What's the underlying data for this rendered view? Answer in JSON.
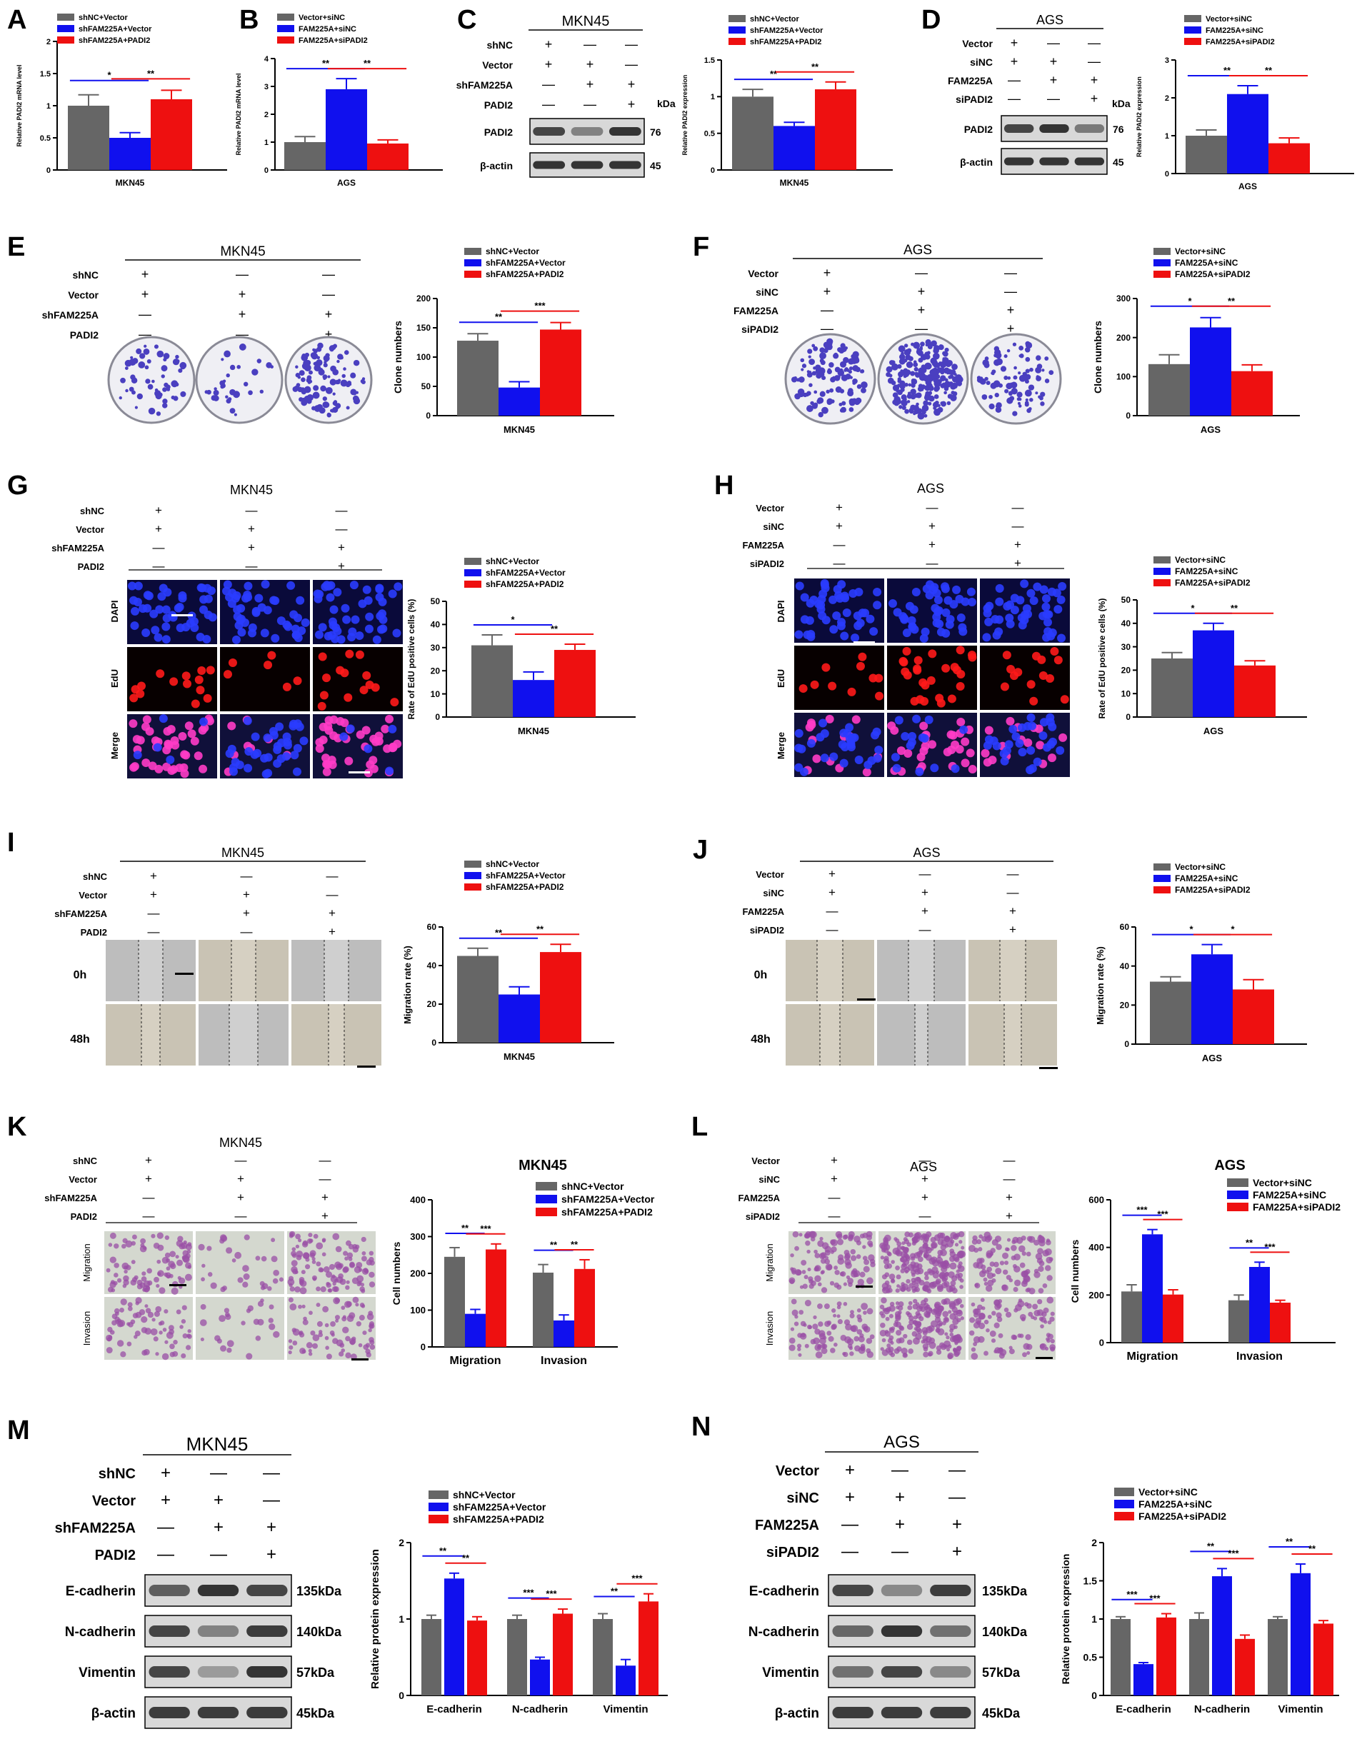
{
  "colors": {
    "gray": "#666666",
    "blue": "#1010ee",
    "red": "#ee1010",
    "blot_bg": "#d8d8d8",
    "band": "#2b2b2b"
  },
  "plus": "+",
  "minus": "—",
  "panels": {
    "A": {
      "letter": "A",
      "cell": "MKN45",
      "legend": [
        "shNC+Vector",
        "shFAM225A+Vector",
        "shFAM225A+PADI2"
      ]
    },
    "B": {
      "letter": "B",
      "cell": "AGS",
      "legend": [
        "Vector+siNC",
        "FAM225A+siNC",
        "FAM225A+siPADI2"
      ]
    },
    "C": {
      "letter": "C",
      "cell": "MKN45",
      "rows": [
        "shNC",
        "Vector",
        "shFAM225A",
        "PADI2"
      ],
      "kda": "kDa",
      "blots": [
        {
          "label": "PADI2",
          "size": "76"
        },
        {
          "label": "β-actin",
          "size": "45"
        }
      ]
    },
    "D": {
      "letter": "D",
      "cell": "AGS",
      "rows": [
        "Vector",
        "siNC",
        "FAM225A",
        "siPADI2"
      ],
      "kda": "kDa",
      "blots": [
        {
          "label": "PADI2",
          "size": "76"
        },
        {
          "label": "β-actin",
          "size": "45"
        }
      ]
    },
    "E": {
      "letter": "E",
      "cell": "MKN45",
      "rows": [
        "shNC",
        "Vector",
        "shFAM225A",
        "PADI2"
      ]
    },
    "F": {
      "letter": "F",
      "cell": "AGS",
      "rows": [
        "Vector",
        "siNC",
        "FAM225A",
        "siPADI2"
      ]
    },
    "G": {
      "letter": "G",
      "cell": "MKN45",
      "rows": [
        "shNC",
        "Vector",
        "shFAM225A",
        "PADI2"
      ],
      "img_rows": [
        "DAPI",
        "EdU",
        "Merge"
      ]
    },
    "H": {
      "letter": "H",
      "cell": "AGS",
      "rows": [
        "Vector",
        "siNC",
        "FAM225A",
        "siPADI2"
      ],
      "img_rows": [
        "DAPI",
        "EdU",
        "Merge"
      ]
    },
    "I": {
      "letter": "I",
      "cell": "MKN45",
      "rows": [
        "shNC",
        "Vector",
        "shFAM225A",
        "PADI2"
      ],
      "img_rows": [
        "0h",
        "48h"
      ]
    },
    "J": {
      "letter": "J",
      "cell": "AGS",
      "rows": [
        "Vector",
        "siNC",
        "FAM225A",
        "siPADI2"
      ],
      "img_rows": [
        "0h",
        "48h"
      ]
    },
    "K": {
      "letter": "K",
      "cell": "MKN45",
      "rows": [
        "shNC",
        "Vector",
        "shFAM225A",
        "PADI2"
      ],
      "img_rows": [
        "Migration",
        "Invasion"
      ]
    },
    "L": {
      "letter": "L",
      "cell": "AGS",
      "rows": [
        "Vector",
        "siNC",
        "FAM225A",
        "siPADI2"
      ],
      "img_rows": [
        "Migration",
        "Invasion"
      ]
    },
    "M": {
      "letter": "M",
      "cell": "MKN45",
      "rows": [
        "shNC",
        "Vector",
        "shFAM225A",
        "PADI2"
      ],
      "blots": [
        {
          "label": "E-cadherin",
          "size": "135kDa"
        },
        {
          "label": "N-cadherin",
          "size": "140kDa"
        },
        {
          "label": "Vimentin",
          "size": "57kDa"
        },
        {
          "label": "β-actin",
          "size": "45kDa"
        }
      ]
    },
    "N": {
      "letter": "N",
      "cell": "AGS",
      "rows": [
        "Vector",
        "siNC",
        "FAM225A",
        "siPADI2"
      ],
      "blots": [
        {
          "label": "E-cadherin",
          "size": "135kDa"
        },
        {
          "label": "N-cadherin",
          "size": "140kDa"
        },
        {
          "label": "Vimentin",
          "size": "57kDa"
        },
        {
          "label": "β-actin",
          "size": "45kDa"
        }
      ]
    }
  },
  "chart_data": [
    {
      "id": "A",
      "type": "bar",
      "categories": [
        "MKN45"
      ],
      "series": [
        {
          "name": "shNC+Vector",
          "values": [
            1.0
          ],
          "err": [
            0.17
          ]
        },
        {
          "name": "shFAM225A+Vector",
          "values": [
            0.5
          ],
          "err": [
            0.08
          ]
        },
        {
          "name": "shFAM225A+PADI2",
          "values": [
            1.1
          ],
          "err": [
            0.14
          ]
        }
      ],
      "ylabel": "Relative PADI2 mRNA level",
      "ylim": [
        0,
        2.0
      ],
      "yticks": [
        0.0,
        0.5,
        1.0,
        1.5,
        2.0
      ],
      "sig": [
        {
          "from": 0,
          "to": 1,
          "text": "*"
        },
        {
          "from": 1,
          "to": 2,
          "text": "**"
        }
      ]
    },
    {
      "id": "B",
      "type": "bar",
      "categories": [
        "AGS"
      ],
      "series": [
        {
          "name": "Vector+siNC",
          "values": [
            1.0
          ],
          "err": [
            0.2
          ]
        },
        {
          "name": "FAM225A+siNC",
          "values": [
            2.9
          ],
          "err": [
            0.38
          ]
        },
        {
          "name": "FAM225A+siPADI2",
          "values": [
            0.95
          ],
          "err": [
            0.13
          ]
        }
      ],
      "ylabel": "Relative PADI2 mRNA level",
      "ylim": [
        0,
        4
      ],
      "yticks": [
        0,
        1,
        2,
        3,
        4
      ],
      "sig": [
        {
          "from": 0,
          "to": 1,
          "text": "**"
        },
        {
          "from": 1,
          "to": 2,
          "text": "**"
        }
      ]
    },
    {
      "id": "C",
      "type": "bar",
      "categories": [
        "MKN45"
      ],
      "series": [
        {
          "name": "shNC+Vector",
          "values": [
            1.0
          ],
          "err": [
            0.1
          ]
        },
        {
          "name": "shFAM225A+Vector",
          "values": [
            0.6
          ],
          "err": [
            0.05
          ]
        },
        {
          "name": "shFAM225A+PADI2",
          "values": [
            1.1
          ],
          "err": [
            0.1
          ]
        }
      ],
      "ylabel": "Relative PADI2 expression",
      "ylim": [
        0,
        1.5
      ],
      "yticks": [
        0.0,
        0.5,
        1.0,
        1.5
      ],
      "sig": [
        {
          "from": 0,
          "to": 1,
          "text": "**"
        },
        {
          "from": 1,
          "to": 2,
          "text": "**"
        }
      ]
    },
    {
      "id": "D",
      "type": "bar",
      "categories": [
        "AGS"
      ],
      "series": [
        {
          "name": "Vector+siNC",
          "values": [
            1.0
          ],
          "err": [
            0.15
          ]
        },
        {
          "name": "FAM225A+siNC",
          "values": [
            2.1
          ],
          "err": [
            0.22
          ]
        },
        {
          "name": "FAM225A+siPADI2",
          "values": [
            0.8
          ],
          "err": [
            0.14
          ]
        }
      ],
      "ylabel": "Relative PADI2 expression",
      "ylim": [
        0,
        3
      ],
      "yticks": [
        0,
        1,
        2,
        3
      ],
      "sig": [
        {
          "from": 0,
          "to": 1,
          "text": "**"
        },
        {
          "from": 1,
          "to": 2,
          "text": "**"
        }
      ]
    },
    {
      "id": "E",
      "type": "bar",
      "categories": [
        "MKN45"
      ],
      "series": [
        {
          "name": "shNC+Vector",
          "values": [
            128
          ],
          "err": [
            12
          ]
        },
        {
          "name": "shFAM225A+Vector",
          "values": [
            48
          ],
          "err": [
            10
          ]
        },
        {
          "name": "shFAM225A+PADI2",
          "values": [
            147
          ],
          "err": [
            12
          ]
        }
      ],
      "ylabel": "Clone numbers",
      "ylim": [
        0,
        200
      ],
      "yticks": [
        0,
        50,
        100,
        150,
        200
      ],
      "sig": [
        {
          "from": 0,
          "to": 1,
          "text": "**"
        },
        {
          "from": 1,
          "to": 2,
          "text": "***"
        }
      ]
    },
    {
      "id": "F",
      "type": "bar",
      "categories": [
        "AGS"
      ],
      "series": [
        {
          "name": "Vector+siNC",
          "values": [
            132
          ],
          "err": [
            24
          ]
        },
        {
          "name": "FAM225A+siNC",
          "values": [
            226
          ],
          "err": [
            25
          ]
        },
        {
          "name": "FAM225A+siPADI2",
          "values": [
            114
          ],
          "err": [
            16
          ]
        }
      ],
      "ylabel": "Clone numbers",
      "ylim": [
        0,
        300
      ],
      "yticks": [
        0,
        100,
        200,
        300
      ],
      "sig": [
        {
          "from": 0,
          "to": 1,
          "text": "*"
        },
        {
          "from": 1,
          "to": 2,
          "text": "**"
        }
      ]
    },
    {
      "id": "G",
      "type": "bar",
      "categories": [
        "MKN45"
      ],
      "series": [
        {
          "name": "shNC+Vector",
          "values": [
            31
          ],
          "err": [
            4.5
          ]
        },
        {
          "name": "shFAM225A+Vector",
          "values": [
            16
          ],
          "err": [
            3.5
          ]
        },
        {
          "name": "shFAM225A+PADI2",
          "values": [
            29
          ],
          "err": [
            2.5
          ]
        }
      ],
      "ylabel": "Rate of EdU positive cells (%)",
      "ylim": [
        0,
        50
      ],
      "yticks": [
        0,
        10,
        20,
        30,
        40,
        50
      ],
      "sig": [
        {
          "from": 0,
          "to": 1,
          "text": "*"
        },
        {
          "from": 1,
          "to": 2,
          "text": "**"
        }
      ]
    },
    {
      "id": "H",
      "type": "bar",
      "categories": [
        "AGS"
      ],
      "series": [
        {
          "name": "Vector+siNC",
          "values": [
            25
          ],
          "err": [
            2.5
          ]
        },
        {
          "name": "FAM225A+siNC",
          "values": [
            37
          ],
          "err": [
            3
          ]
        },
        {
          "name": "FAM225A+siPADI2",
          "values": [
            22
          ],
          "err": [
            2
          ]
        }
      ],
      "ylabel": "Rate of EdU positive cells (%)",
      "ylim": [
        0,
        50
      ],
      "yticks": [
        0,
        10,
        20,
        30,
        40,
        50
      ],
      "sig": [
        {
          "from": 0,
          "to": 1,
          "text": "*"
        },
        {
          "from": 1,
          "to": 2,
          "text": "**"
        }
      ]
    },
    {
      "id": "I",
      "type": "bar",
      "categories": [
        "MKN45"
      ],
      "series": [
        {
          "name": "shNC+Vector",
          "values": [
            45
          ],
          "err": [
            4
          ]
        },
        {
          "name": "shFAM225A+Vector",
          "values": [
            25
          ],
          "err": [
            4
          ]
        },
        {
          "name": "shFAM225A+PADI2",
          "values": [
            47
          ],
          "err": [
            4
          ]
        }
      ],
      "ylabel": "Migration rate (%)",
      "ylim": [
        0,
        60
      ],
      "yticks": [
        0,
        20,
        40,
        60
      ],
      "sig": [
        {
          "from": 0,
          "to": 1,
          "text": "**"
        },
        {
          "from": 1,
          "to": 2,
          "text": "**"
        }
      ]
    },
    {
      "id": "J",
      "type": "bar",
      "categories": [
        "AGS"
      ],
      "series": [
        {
          "name": "Vector+siNC",
          "values": [
            32
          ],
          "err": [
            2.5
          ]
        },
        {
          "name": "FAM225A+siNC",
          "values": [
            46
          ],
          "err": [
            5
          ]
        },
        {
          "name": "FAM225A+siPADI2",
          "values": [
            28
          ],
          "err": [
            5
          ]
        }
      ],
      "ylabel": "Migration rate (%)",
      "ylim": [
        0,
        60
      ],
      "yticks": [
        0,
        20,
        40,
        60
      ],
      "sig": [
        {
          "from": 0,
          "to": 1,
          "text": "*"
        },
        {
          "from": 1,
          "to": 2,
          "text": "*"
        }
      ]
    },
    {
      "id": "K",
      "type": "bar",
      "title": "MKN45",
      "categories": [
        "Migration",
        "Invasion"
      ],
      "series": [
        {
          "name": "shNC+Vector",
          "values": [
            245,
            202
          ],
          "err": [
            25,
            22
          ]
        },
        {
          "name": "shFAM225A+Vector",
          "values": [
            90,
            72
          ],
          "err": [
            12,
            15
          ]
        },
        {
          "name": "shFAM225A+PADI2",
          "values": [
            265,
            212
          ],
          "err": [
            15,
            25
          ]
        }
      ],
      "ylabel": "Cell numbers",
      "ylim": [
        0,
        400
      ],
      "yticks": [
        0,
        100,
        200,
        300,
        400
      ],
      "sig": [
        {
          "group": 0,
          "from": 0,
          "to": 1,
          "text": "**"
        },
        {
          "group": 0,
          "from": 1,
          "to": 2,
          "text": "***"
        },
        {
          "group": 1,
          "from": 0,
          "to": 1,
          "text": "**"
        },
        {
          "group": 1,
          "from": 1,
          "to": 2,
          "text": "**"
        }
      ]
    },
    {
      "id": "L",
      "type": "bar",
      "title": "AGS",
      "categories": [
        "Migration",
        "Invasion"
      ],
      "series": [
        {
          "name": "Vector+siNC",
          "values": [
            215,
            178
          ],
          "err": [
            28,
            22
          ]
        },
        {
          "name": "FAM225A+siNC",
          "values": [
            455,
            318
          ],
          "err": [
            20,
            20
          ]
        },
        {
          "name": "FAM225A+siPADI2",
          "values": [
            202,
            168
          ],
          "err": [
            20,
            10
          ]
        }
      ],
      "ylabel": "Cell numbers",
      "ylim": [
        0,
        600
      ],
      "yticks": [
        0,
        200,
        400,
        600
      ],
      "sig": [
        {
          "group": 0,
          "from": 0,
          "to": 1,
          "text": "***"
        },
        {
          "group": 0,
          "from": 1,
          "to": 2,
          "text": "***"
        },
        {
          "group": 1,
          "from": 0,
          "to": 1,
          "text": "**"
        },
        {
          "group": 1,
          "from": 1,
          "to": 2,
          "text": "***"
        }
      ]
    },
    {
      "id": "M",
      "type": "bar",
      "categories": [
        "E-cadherin",
        "N-cadherin",
        "Vimentin"
      ],
      "series": [
        {
          "name": "shNC+Vector",
          "values": [
            1.0,
            1.0,
            1.0
          ],
          "err": [
            0.05,
            0.05,
            0.07
          ]
        },
        {
          "name": "shFAM225A+Vector",
          "values": [
            1.53,
            0.47,
            0.39
          ],
          "err": [
            0.07,
            0.03,
            0.08
          ]
        },
        {
          "name": "shFAM225A+PADI2",
          "values": [
            0.98,
            1.07,
            1.23
          ],
          "err": [
            0.05,
            0.06,
            0.1
          ]
        }
      ],
      "ylabel": "Relative protein expression",
      "ylim": [
        0,
        2.0
      ],
      "yticks": [
        0,
        1,
        2
      ],
      "sig": [
        {
          "group": 0,
          "from": 0,
          "to": 1,
          "text": "**"
        },
        {
          "group": 0,
          "from": 1,
          "to": 2,
          "text": "**"
        },
        {
          "group": 1,
          "from": 0,
          "to": 1,
          "text": "***"
        },
        {
          "group": 1,
          "from": 1,
          "to": 2,
          "text": "***"
        },
        {
          "group": 2,
          "from": 0,
          "to": 1,
          "text": "**"
        },
        {
          "group": 2,
          "from": 1,
          "to": 2,
          "text": "***"
        }
      ]
    },
    {
      "id": "N",
      "type": "bar",
      "categories": [
        "E-cadherin",
        "N-cadherin",
        "Vimentin"
      ],
      "series": [
        {
          "name": "Vector+siNC",
          "values": [
            1.0,
            1.0,
            1.0
          ],
          "err": [
            0.03,
            0.08,
            0.03
          ]
        },
        {
          "name": "FAM225A+siNC",
          "values": [
            0.41,
            1.56,
            1.6
          ],
          "err": [
            0.02,
            0.1,
            0.12
          ]
        },
        {
          "name": "FAM225A+siPADI2",
          "values": [
            1.02,
            0.74,
            0.94
          ],
          "err": [
            0.05,
            0.05,
            0.04
          ]
        }
      ],
      "ylabel": "Relative protein expression",
      "ylim": [
        0,
        2.0
      ],
      "yticks": [
        0.0,
        0.5,
        1.0,
        1.5,
        2.0
      ],
      "sig": [
        {
          "group": 0,
          "from": 0,
          "to": 1,
          "text": "***"
        },
        {
          "group": 0,
          "from": 1,
          "to": 2,
          "text": "***"
        },
        {
          "group": 1,
          "from": 0,
          "to": 1,
          "text": "**"
        },
        {
          "group": 1,
          "from": 1,
          "to": 2,
          "text": "***"
        },
        {
          "group": 2,
          "from": 0,
          "to": 1,
          "text": "**"
        },
        {
          "group": 2,
          "from": 1,
          "to": 2,
          "text": "**"
        }
      ]
    }
  ]
}
